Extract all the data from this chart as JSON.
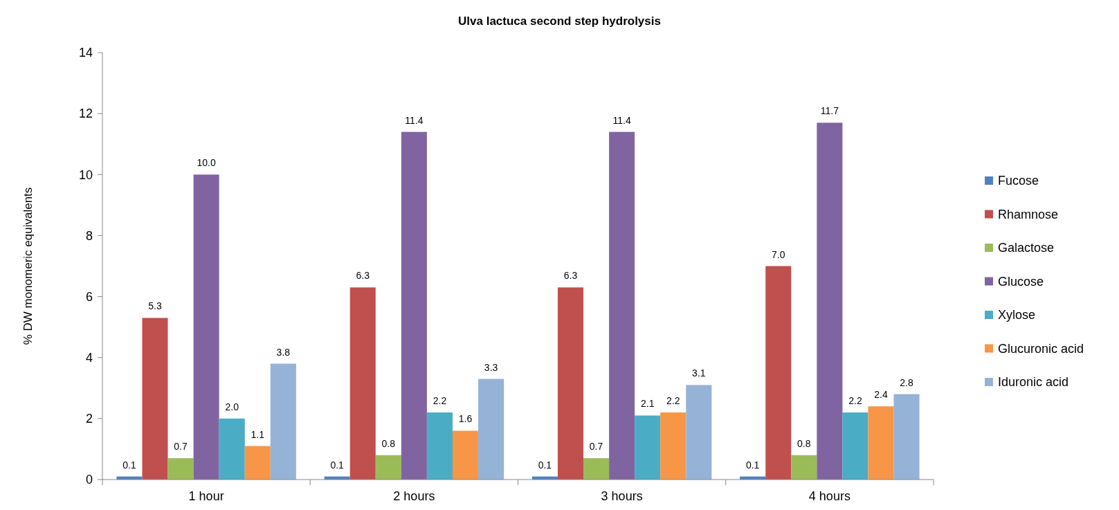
{
  "chart_data": {
    "type": "bar",
    "title": "Ulva lactuca second step hydrolysis",
    "ylabel": "% DW monomeric equivalents",
    "categories": [
      "1 hour",
      "2 hours",
      "3 hours",
      "4 hours"
    ],
    "series": [
      {
        "name": "Fucose",
        "color": "#4f81bd",
        "values": [
          0.1,
          0.1,
          0.1,
          0.1
        ],
        "value_labels": [
          "0.1",
          "0.1",
          "0.1",
          "0.1"
        ]
      },
      {
        "name": "Rhamnose",
        "color": "#c0504d",
        "values": [
          5.3,
          6.3,
          6.3,
          7.0
        ],
        "value_labels": [
          "5.3",
          "6.3",
          "6.3",
          "7.0"
        ]
      },
      {
        "name": "Galactose",
        "color": "#9bbb59",
        "values": [
          0.7,
          0.8,
          0.7,
          0.8
        ],
        "value_labels": [
          "0.7",
          "0.8",
          "0.7",
          "0.8"
        ]
      },
      {
        "name": "Glucose",
        "color": "#8064a2",
        "values": [
          10.0,
          11.4,
          11.4,
          11.7
        ],
        "value_labels": [
          "10.0",
          "11.4",
          "11.4",
          "11.7"
        ]
      },
      {
        "name": "Xylose",
        "color": "#4bacc6",
        "values": [
          2.0,
          2.2,
          2.1,
          2.2
        ],
        "value_labels": [
          "2.0",
          "2.2",
          "2.1",
          "2.2"
        ]
      },
      {
        "name": "Glucuronic acid",
        "color": "#f79646",
        "values": [
          1.1,
          1.6,
          2.2,
          2.4
        ],
        "value_labels": [
          "1.1",
          "1.6",
          "2.2",
          "2.4"
        ]
      },
      {
        "name": "Iduronic acid",
        "color": "#95b3d7",
        "values": [
          3.8,
          3.3,
          3.1,
          2.8
        ],
        "value_labels": [
          "3.8",
          "3.3",
          "3.1",
          "2.8"
        ]
      }
    ],
    "ylim": [
      0,
      14
    ],
    "yticks": [
      0,
      2,
      4,
      6,
      8,
      10,
      12,
      14
    ],
    "grid": false,
    "legend": "right"
  }
}
